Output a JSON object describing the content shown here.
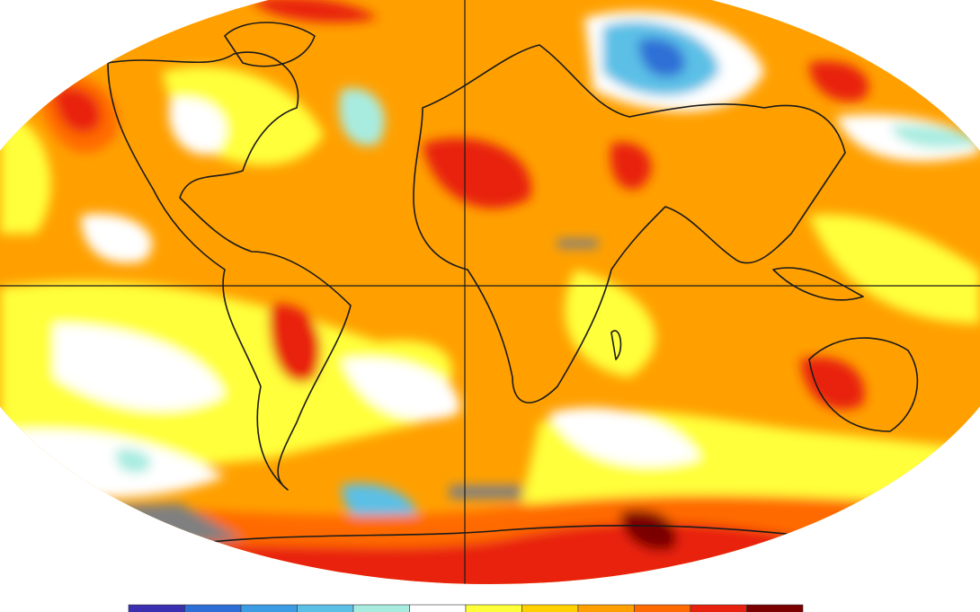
{
  "colorbar": {
    "colors": [
      "#3a2fb0",
      "#2d6fd6",
      "#3b9be3",
      "#5cc0e6",
      "#a8ece0",
      "#ffffff",
      "#ffff3a",
      "#ffd000",
      "#ffa000",
      "#ff6a00",
      "#e8200e",
      "#7a0000"
    ]
  }
}
